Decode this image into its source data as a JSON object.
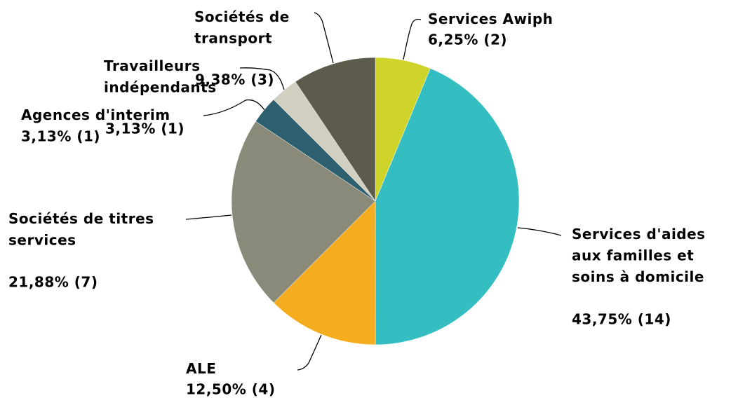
{
  "chart_data": {
    "type": "pie",
    "categories": [
      "Services Awiph",
      "Services d'aides aux familles et soins à domicile",
      "ALE",
      "Sociétés de titres services",
      "Agences d'interim",
      "Travailleurs indépendants",
      "Sociétés de transport"
    ],
    "values": [
      6.25,
      43.75,
      12.5,
      21.88,
      3.13,
      3.13,
      9.38
    ],
    "value_labels": [
      "6,25% (2)",
      "43,75% (14)",
      "12,50% (4)",
      "21,88% (7)",
      "3,13% (1)",
      "3,13% (1)",
      "9,38% (3)"
    ],
    "colors": [
      "#cfd42a",
      "#35bec1",
      "#f5ad1f",
      "#8a8a7a",
      "#2d5f6e",
      "#d0cfc0",
      "#5d5b4b"
    ]
  }
}
